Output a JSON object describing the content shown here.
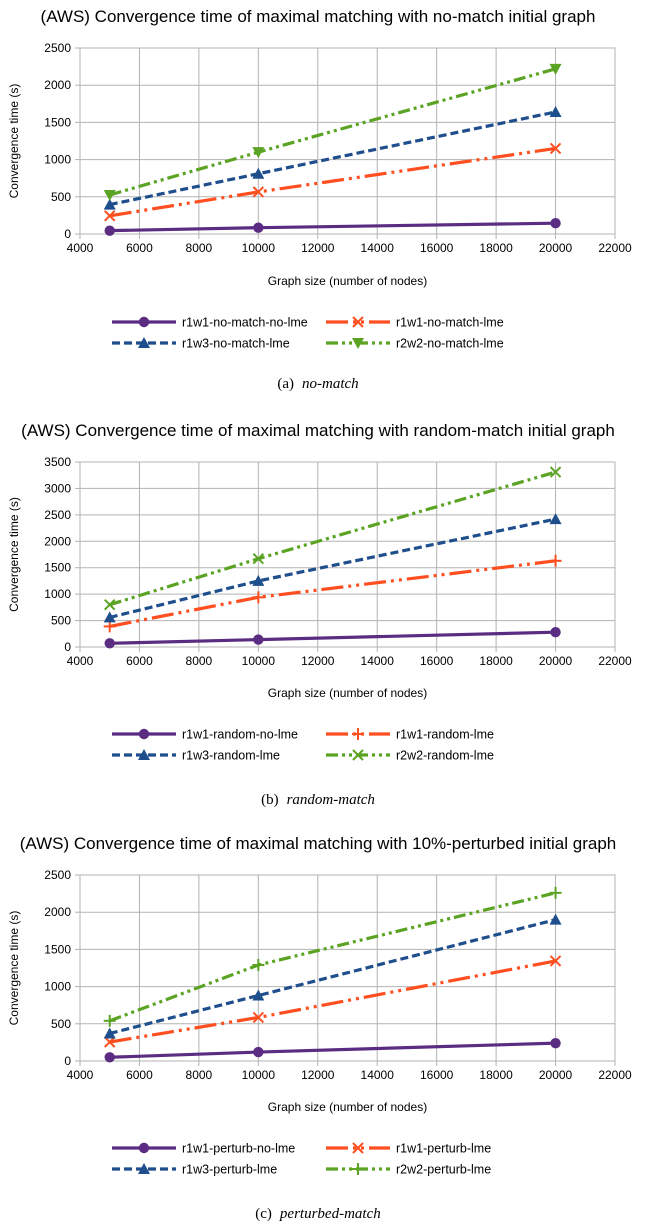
{
  "chart_data": [
    {
      "type": "line",
      "title": "(AWS) Convergence time of maximal matching with no-match initial graph",
      "xlabel": "Graph size (number of nodes)",
      "ylabel": "Convergence time (s)",
      "xlim": [
        4000,
        22000
      ],
      "ylim": [
        0,
        2500
      ],
      "xticks": [
        "4000",
        "6000",
        "8000",
        "10000",
        "12000",
        "14000",
        "16000",
        "18000",
        "20000",
        "22000"
      ],
      "yticks": [
        "0",
        "500",
        "1000",
        "1500",
        "2000",
        "2500"
      ],
      "grid": true,
      "legend_position": "bottom",
      "caption_label": "(a)",
      "caption_text": "no-match",
      "series": [
        {
          "name": "r1w1-no-match-no-lme",
          "color": "#5b2d82",
          "marker": "circle",
          "dash": "solid",
          "x": [
            5000,
            10000,
            20000
          ],
          "values": [
            45,
            85,
            145
          ]
        },
        {
          "name": "r1w1-no-match-lme",
          "color": "#ff4e1f",
          "marker": "x",
          "dash": "dashdotdot-long",
          "x": [
            5000,
            10000,
            20000
          ],
          "values": [
            245,
            565,
            1150
          ]
        },
        {
          "name": "r1w3-no-match-lme",
          "color": "#1f4e8c",
          "marker": "triangle",
          "dash": "dash",
          "x": [
            5000,
            10000,
            20000
          ],
          "values": [
            395,
            810,
            1640
          ]
        },
        {
          "name": "r2w2-no-match-lme",
          "color": "#5ba323",
          "marker": "triangle-down",
          "dash": "dashdotdot",
          "x": [
            5000,
            10000,
            20000
          ],
          "values": [
            525,
            1100,
            2220
          ]
        }
      ]
    },
    {
      "type": "line",
      "title": "(AWS) Convergence time of maximal matching with random-match initial graph",
      "xlabel": "Graph size (number of nodes)",
      "ylabel": "Convergence time (s)",
      "xlim": [
        4000,
        22000
      ],
      "ylim": [
        0,
        3500
      ],
      "xticks": [
        "4000",
        "6000",
        "8000",
        "10000",
        "12000",
        "14000",
        "16000",
        "18000",
        "20000",
        "22000"
      ],
      "yticks": [
        "0",
        "500",
        "1000",
        "1500",
        "2000",
        "2500",
        "3000",
        "3500"
      ],
      "grid": true,
      "legend_position": "bottom",
      "caption_label": "(b)",
      "caption_text": "random-match",
      "series": [
        {
          "name": "r1w1-random-no-lme",
          "color": "#5b2d82",
          "marker": "circle",
          "dash": "solid",
          "x": [
            5000,
            10000,
            20000
          ],
          "values": [
            70,
            140,
            280
          ]
        },
        {
          "name": "r1w1-random-lme",
          "color": "#ff4e1f",
          "marker": "plus",
          "dash": "dashdotdot-long",
          "x": [
            5000,
            10000,
            20000
          ],
          "values": [
            390,
            940,
            1630
          ]
        },
        {
          "name": "r1w3-random-lme",
          "color": "#1f4e8c",
          "marker": "triangle",
          "dash": "dash",
          "x": [
            5000,
            10000,
            20000
          ],
          "values": [
            560,
            1250,
            2420
          ]
        },
        {
          "name": "r2w2-random-lme",
          "color": "#5ba323",
          "marker": "x",
          "dash": "dashdotdot",
          "x": [
            5000,
            10000,
            20000
          ],
          "values": [
            800,
            1670,
            3310
          ]
        }
      ]
    },
    {
      "type": "line",
      "title": "(AWS) Convergence time of maximal matching with 10%-perturbed initial graph",
      "xlabel": "Graph size (number of nodes)",
      "ylabel": "Convergence time (s)",
      "xlim": [
        4000,
        22000
      ],
      "ylim": [
        0,
        2500
      ],
      "xticks": [
        "4000",
        "6000",
        "8000",
        "10000",
        "12000",
        "14000",
        "16000",
        "18000",
        "20000",
        "22000"
      ],
      "yticks": [
        "0",
        "500",
        "1000",
        "1500",
        "2000",
        "2500"
      ],
      "grid": true,
      "legend_position": "bottom",
      "caption_label": "(c)",
      "caption_text": "perturbed-match",
      "series": [
        {
          "name": "r1w1-perturb-no-lme",
          "color": "#5b2d82",
          "marker": "circle",
          "dash": "solid",
          "x": [
            5000,
            10000,
            20000
          ],
          "values": [
            50,
            120,
            240
          ]
        },
        {
          "name": "r1w1-perturb-lme",
          "color": "#ff4e1f",
          "marker": "x",
          "dash": "dashdotdot-long",
          "x": [
            5000,
            10000,
            20000
          ],
          "values": [
            255,
            585,
            1345
          ]
        },
        {
          "name": "r1w3-perturb-lme",
          "color": "#1f4e8c",
          "marker": "triangle",
          "dash": "dash",
          "x": [
            5000,
            10000,
            20000
          ],
          "values": [
            370,
            880,
            1900
          ]
        },
        {
          "name": "r2w2-perturb-lme",
          "color": "#5ba323",
          "marker": "plus",
          "dash": "dashdotdot",
          "x": [
            5000,
            10000,
            20000
          ],
          "values": [
            540,
            1290,
            2260
          ]
        }
      ]
    }
  ]
}
